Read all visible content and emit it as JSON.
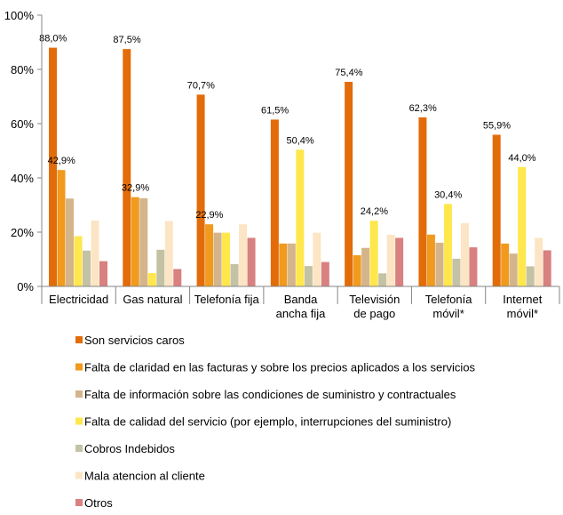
{
  "chart_data": {
    "type": "bar",
    "categories": [
      [
        "Electricidad"
      ],
      [
        "Gas natural"
      ],
      [
        "Telefonía fija"
      ],
      [
        "Banda",
        "ancha fija"
      ],
      [
        "Televisión",
        "de pago"
      ],
      [
        "Telefonía",
        "móvil*"
      ],
      [
        "Internet",
        "móvil*"
      ]
    ],
    "series": [
      {
        "name": "Son servicios caros",
        "color": "#E36C0A",
        "values": [
          88.0,
          87.5,
          70.7,
          61.5,
          75.4,
          62.3,
          55.9
        ],
        "labels": [
          "88,0%",
          "87,5%",
          "70,7%",
          "61,5%",
          "75,4%",
          "62,3%",
          "55,9%"
        ]
      },
      {
        "name": "Falta de claridad en las facturas y sobre los precios aplicados a los servicios",
        "color": "#F09A1E",
        "values": [
          42.9,
          32.9,
          22.9,
          15.8,
          11.5,
          19.1,
          15.8
        ],
        "labels": [
          "42,9%",
          "32,9%",
          "22,9%",
          "",
          "",
          "",
          ""
        ]
      },
      {
        "name": "Falta de información sobre las condiciones de suministro y contractuales",
        "color": "#D4B48A",
        "values": [
          32.4,
          32.5,
          19.8,
          15.8,
          14.2,
          16.1,
          12.1
        ],
        "labels": [
          "",
          "",
          "",
          "",
          "",
          "",
          ""
        ]
      },
      {
        "name": "Falta de calidad del servicio (por ejemplo, interrupciones del suministro)",
        "color": "#FFE74C",
        "values": [
          18.5,
          4.9,
          19.8,
          50.4,
          24.2,
          30.4,
          44.0
        ],
        "labels": [
          "",
          "",
          "",
          "50,4%",
          "24,2%",
          "30,4%",
          "44,0%"
        ]
      },
      {
        "name": "Cobros Indebidos",
        "color": "#C4C2A4",
        "values": [
          13.2,
          13.5,
          8.2,
          7.5,
          4.8,
          10.2,
          7.4
        ],
        "labels": [
          "",
          "",
          "",
          "",
          "",
          "",
          ""
        ]
      },
      {
        "name": "Mala atencion al cliente",
        "color": "#FCE5C4",
        "values": [
          24.3,
          24.1,
          22.9,
          19.8,
          19.0,
          23.3,
          17.9
        ],
        "labels": [
          "",
          "",
          "",
          "",
          "",
          "",
          ""
        ]
      },
      {
        "name": "Otros",
        "color": "#D98080",
        "values": [
          9.3,
          6.4,
          17.9,
          9.0,
          17.9,
          14.4,
          13.3
        ],
        "labels": [
          "",
          "",
          "",
          "",
          "",
          "",
          ""
        ]
      }
    ],
    "y_ticks": [
      "0%",
      "20%",
      "40%",
      "60%",
      "80%",
      "100%"
    ],
    "ylim": [
      0,
      100
    ],
    "grid": false,
    "legend_position": "bottom"
  }
}
